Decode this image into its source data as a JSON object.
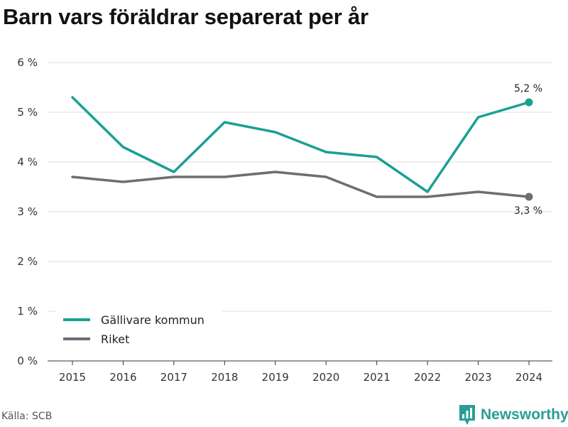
{
  "title": "Barn vars föräldrar separerat per år",
  "source": "Källa: SCB",
  "brand": "Newsworthy",
  "colors": {
    "gallivare": "#1aa093",
    "riket": "#6e6c75",
    "grid": "#dddddd"
  },
  "chart_data": {
    "type": "line",
    "title": "Barn vars föräldrar separerat per år",
    "x": [
      "2015",
      "2016",
      "2017",
      "2018",
      "2019",
      "2020",
      "2021",
      "2022",
      "2023",
      "2024"
    ],
    "series": [
      {
        "name": "Gällivare kommun",
        "color": "#1aa093",
        "values": [
          5.3,
          4.3,
          3.8,
          4.8,
          4.6,
          4.2,
          4.1,
          3.4,
          4.9,
          5.2
        ]
      },
      {
        "name": "Riket",
        "color": "#6e6c75",
        "values": [
          3.7,
          3.6,
          3.7,
          3.7,
          3.8,
          3.7,
          3.3,
          3.3,
          3.4,
          3.3
        ]
      }
    ],
    "ylim": [
      0,
      6
    ],
    "yticks": [
      "0 %",
      "1 %",
      "2 %",
      "3 %",
      "4 %",
      "5 %",
      "6 %"
    ],
    "end_labels": [
      "5,2 %",
      "3,3 %"
    ],
    "legend": "bottom-left",
    "grid": true
  }
}
